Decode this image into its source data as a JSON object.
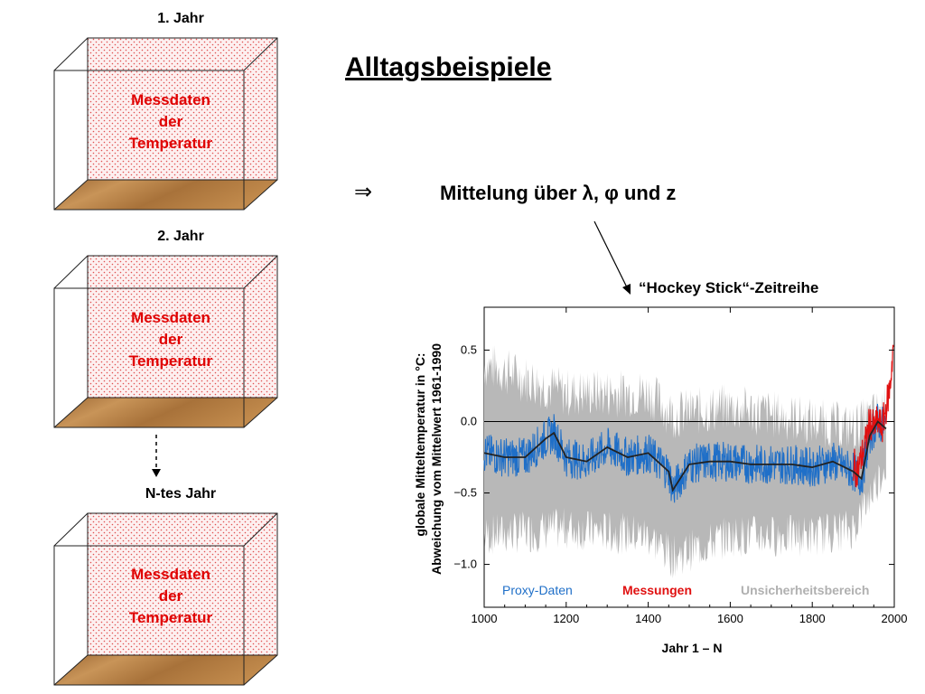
{
  "slide": {
    "title": "Alltagsbeispiele",
    "arrow_symbol": "⇒",
    "mittelung_text": "Mittelung über λ, φ und z",
    "hockey_label": "“Hockey Stick“-Zeitreihe"
  },
  "boxes": [
    {
      "label": "1. Jahr",
      "line1": "Messdaten",
      "line2": "der",
      "line3": "Temperatur"
    },
    {
      "label": "2. Jahr",
      "line1": "Messdaten",
      "line2": "der",
      "line3": "Temperatur"
    },
    {
      "label": "N-tes Jahr",
      "line1": "Messdaten",
      "line2": "der",
      "line3": "Temperatur"
    }
  ],
  "colors": {
    "box_text": "#e00000",
    "wood": "#b07a3c",
    "proxy": "#1f6fc8",
    "measure": "#e01010",
    "uncertainty": "#b8b8b8"
  },
  "chart_data": {
    "type": "line",
    "title": "",
    "xlabel": "Jahr 1 – N",
    "ylabel_line1": "globale Mitteltemperatur in °C:",
    "ylabel_line2": "Abweichung vom Mittelwert 1961-1990",
    "xlim": [
      1000,
      2000
    ],
    "ylim": [
      -1.3,
      0.8
    ],
    "x_ticks": [
      1000,
      1200,
      1400,
      1600,
      1800,
      2000
    ],
    "x_tick_labels": [
      "1000",
      "1200",
      "1400",
      "1600",
      "1800",
      "2000"
    ],
    "y_ticks": [
      0.5,
      0.0,
      -0.5,
      -1.0
    ],
    "y_tick_labels": [
      "0.5",
      "0.0",
      "−0.5",
      "−1.0"
    ],
    "legend": [
      "Proxy-Daten",
      "Messungen",
      "Unsicherheitsbereich"
    ],
    "legend_placement": "bottom",
    "series": [
      {
        "name": "Proxy-Daten",
        "x": [
          1000,
          1050,
          1100,
          1150,
          1170,
          1200,
          1250,
          1300,
          1350,
          1400,
          1450,
          1460,
          1500,
          1550,
          1600,
          1650,
          1700,
          1750,
          1800,
          1850,
          1900,
          1920,
          1940,
          1960,
          1980
        ],
        "values": [
          -0.22,
          -0.25,
          -0.25,
          -0.12,
          -0.08,
          -0.25,
          -0.28,
          -0.18,
          -0.25,
          -0.22,
          -0.35,
          -0.48,
          -0.3,
          -0.28,
          -0.28,
          -0.3,
          -0.3,
          -0.3,
          -0.32,
          -0.28,
          -0.35,
          -0.4,
          -0.1,
          0.0,
          -0.05
        ]
      },
      {
        "name": "Messungen",
        "x": [
          1900,
          1910,
          1920,
          1930,
          1940,
          1950,
          1960,
          1970,
          1980,
          1990,
          1998
        ],
        "values": [
          -0.3,
          -0.35,
          -0.25,
          -0.15,
          0.0,
          -0.05,
          0.0,
          -0.05,
          0.1,
          0.25,
          0.55
        ]
      },
      {
        "name": "Unsicherheitsbereich",
        "x": [
          1000,
          1200,
          1400,
          1460,
          1600,
          1800,
          1900,
          1980
        ],
        "values_upper": [
          0.4,
          0.2,
          0.2,
          0.05,
          0.1,
          0.0,
          -0.05,
          0.1
        ],
        "values_lower": [
          -0.8,
          -0.75,
          -0.8,
          -0.95,
          -0.8,
          -0.8,
          -0.75,
          -0.3
        ]
      }
    ]
  }
}
